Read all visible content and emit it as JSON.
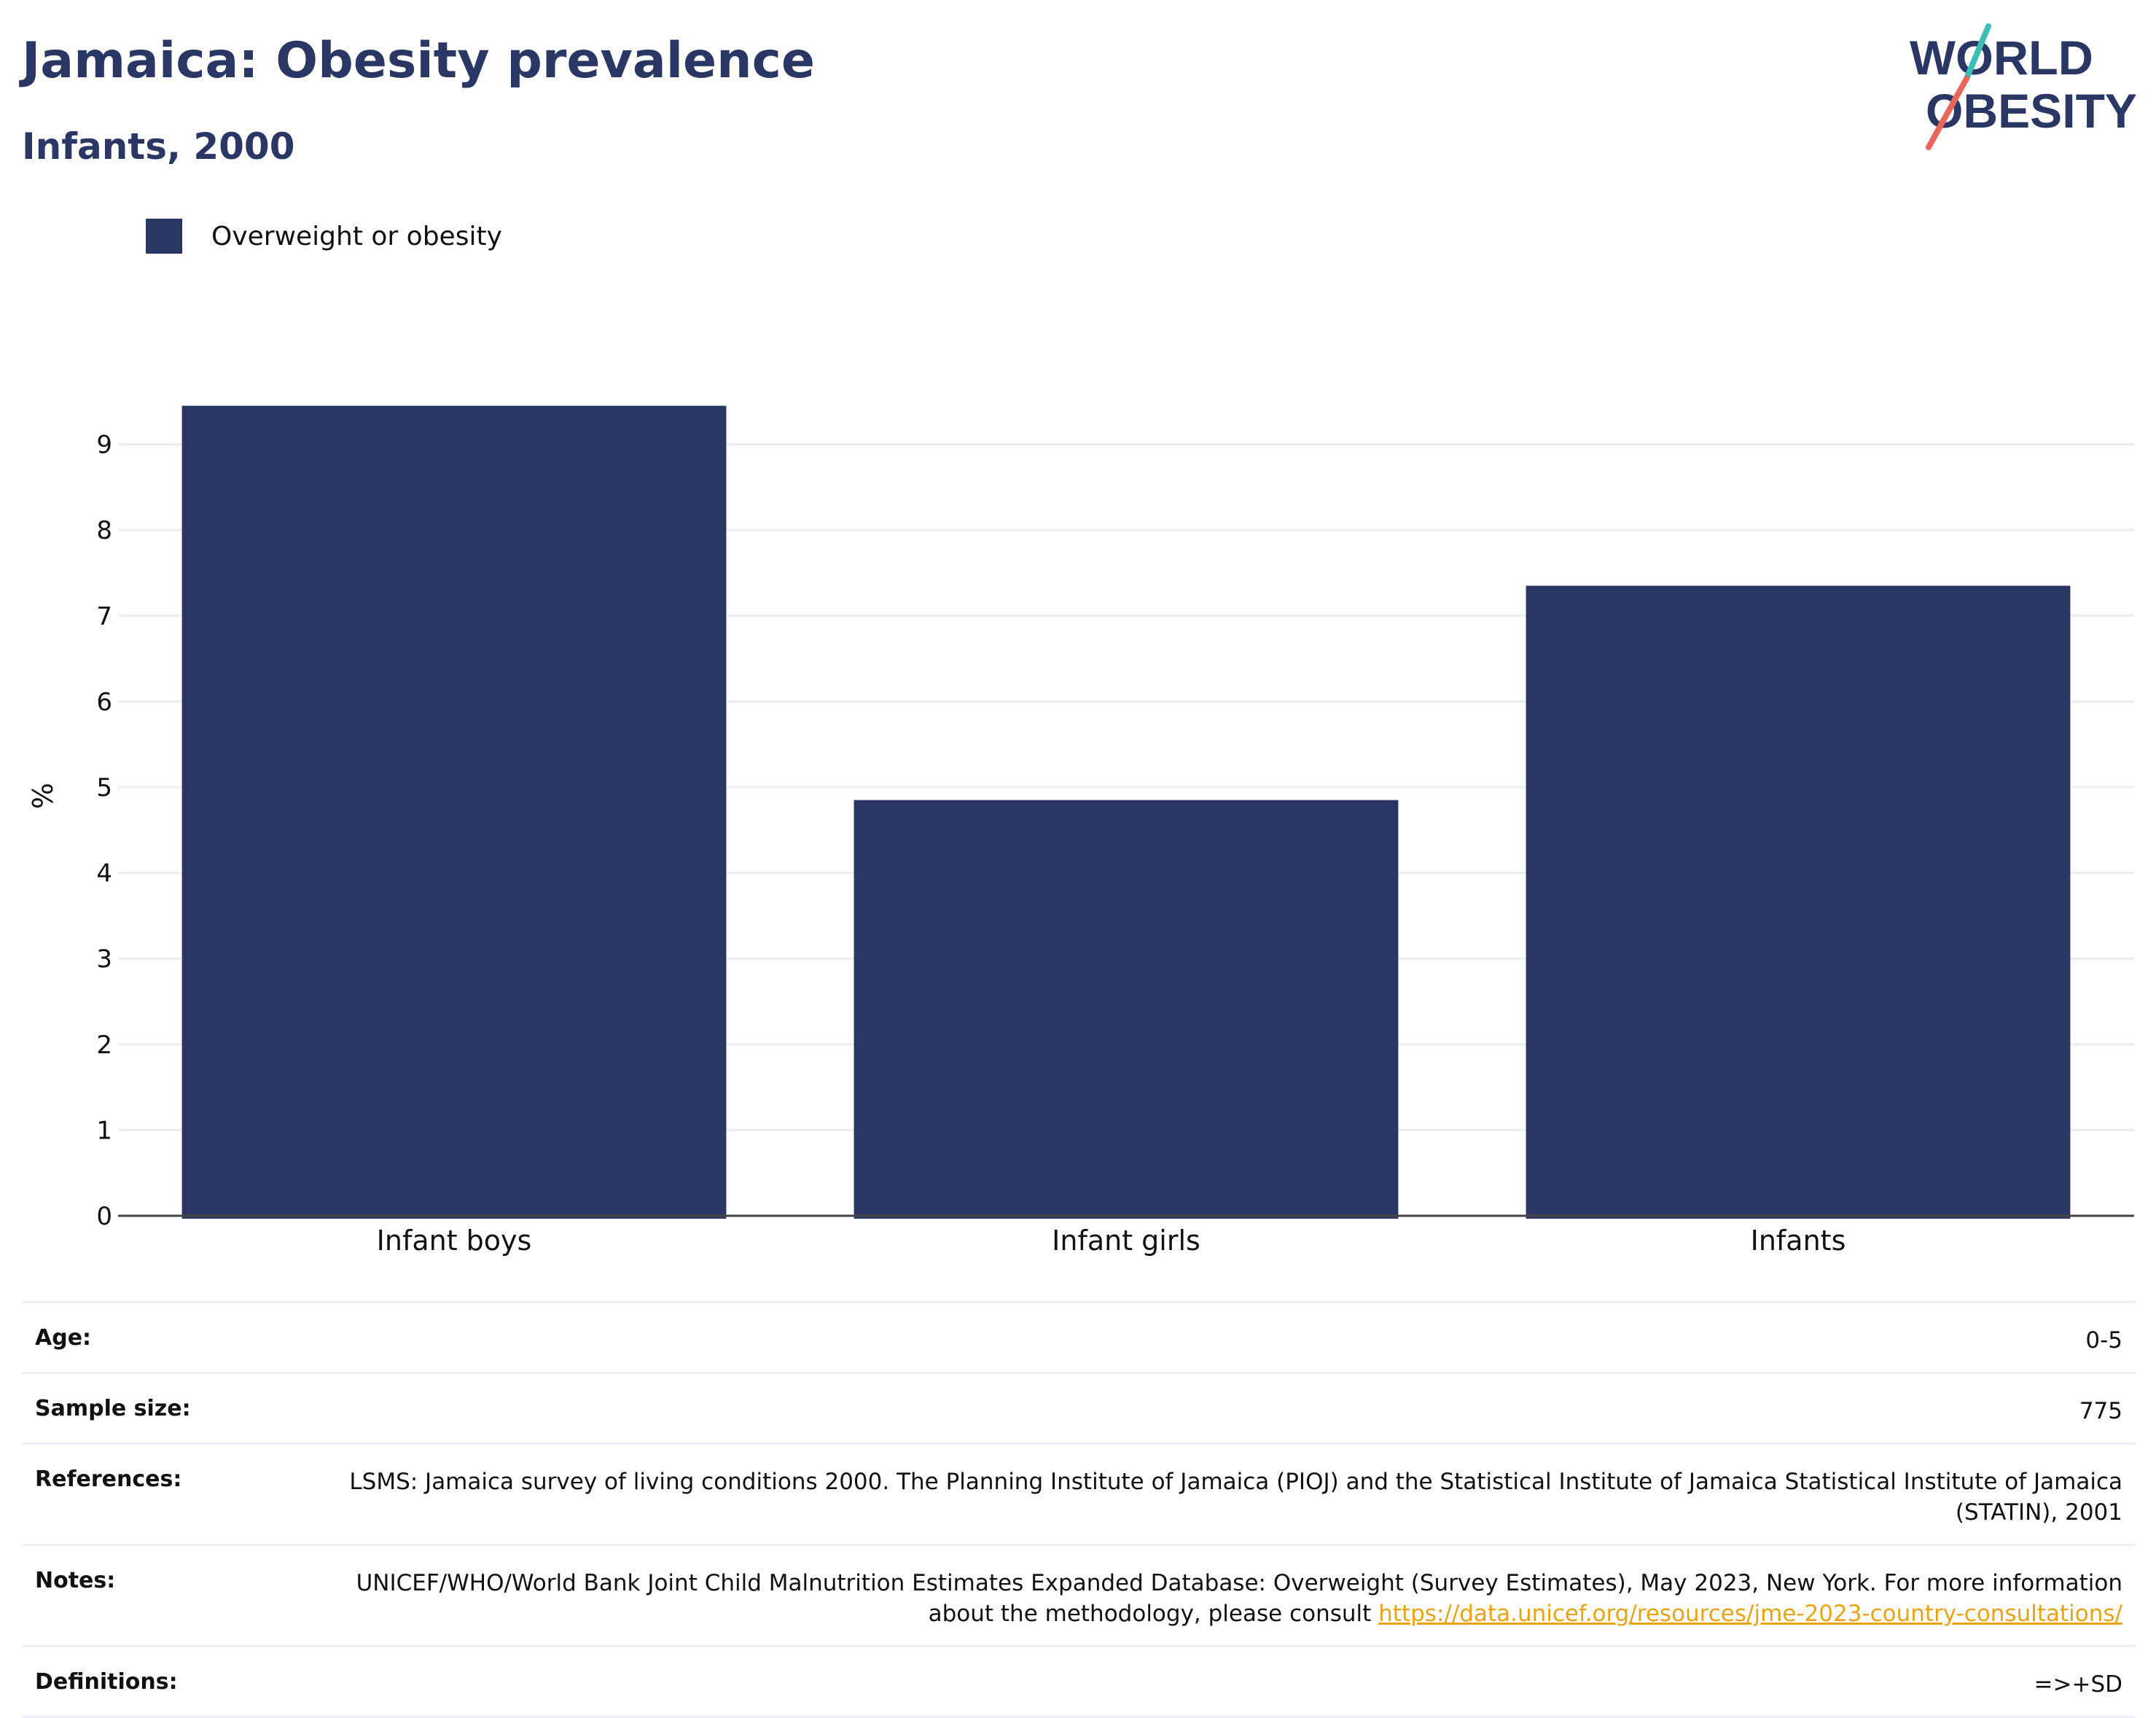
{
  "header": {
    "title": "Jamaica: Obesity prevalence",
    "subtitle": "Infants, 2000"
  },
  "logo": {
    "line1": "WORLD",
    "line2": "OBESITY"
  },
  "colors": {
    "bar": "#2a3663",
    "accent_teal": "#3bbfb4",
    "accent_coral": "#e8675a",
    "link": "#e8a317"
  },
  "legend": {
    "label": "Overweight or obesity"
  },
  "chart_data": {
    "type": "bar",
    "categories": [
      "Infant boys",
      "Infant girls",
      "Infants"
    ],
    "series": [
      {
        "name": "Overweight or obesity",
        "values": [
          9.45,
          4.85,
          7.35
        ]
      }
    ],
    "ylabel": "%",
    "ylim": [
      0,
      10
    ],
    "yticks": [
      0,
      1,
      2,
      3,
      4,
      5,
      6,
      7,
      8,
      9
    ],
    "grid": true,
    "legend_position": "top-left"
  },
  "info": {
    "age_label": "Age:",
    "age_value": "0-5",
    "sample_label": "Sample size:",
    "sample_value": "775",
    "references_label": "References:",
    "references_value": "LSMS: Jamaica survey of living conditions 2000. The Planning Institute of Jamaica (PIOJ) and the Statistical Institute of Jamaica Statistical Institute of Jamaica (STATIN), 2001",
    "notes_label": "Notes:",
    "notes_text": "UNICEF/WHO/World Bank Joint Child Malnutrition Estimates Expanded Database: Overweight (Survey Estimates), May 2023, New York. For more information about the methodology, please consult ",
    "notes_link": "https://data.unicef.org/resources/jme-2023-country-consultations/",
    "definitions_label": "Definitions:",
    "definitions_value": "=>+SD"
  }
}
